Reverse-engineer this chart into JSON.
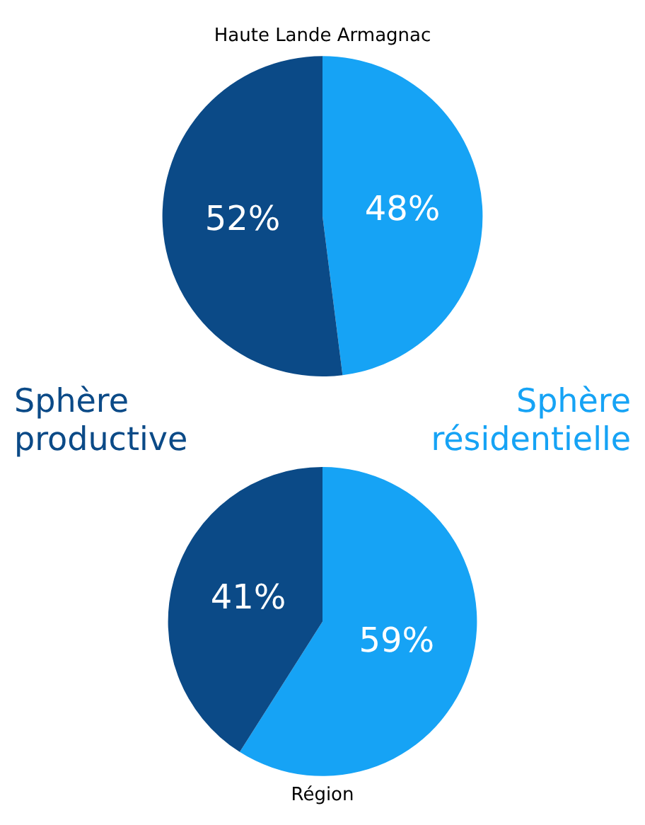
{
  "chart_data": [
    {
      "type": "pie",
      "title": "Haute Lande Armagnac",
      "categories": [
        "Sphère résidentielle",
        "Sphère productive"
      ],
      "values": [
        48,
        52
      ],
      "colors": [
        "#16a3f5",
        "#0b4a87"
      ],
      "value_labels": [
        "48%",
        "52%"
      ]
    },
    {
      "type": "pie",
      "title": "Région",
      "categories": [
        null,
        null
      ],
      "values": [
        59,
        41
      ],
      "colors": [
        "#16a3f5",
        "#0b4a87"
      ],
      "value_labels": [
        "59%",
        "41%"
      ]
    }
  ]
}
